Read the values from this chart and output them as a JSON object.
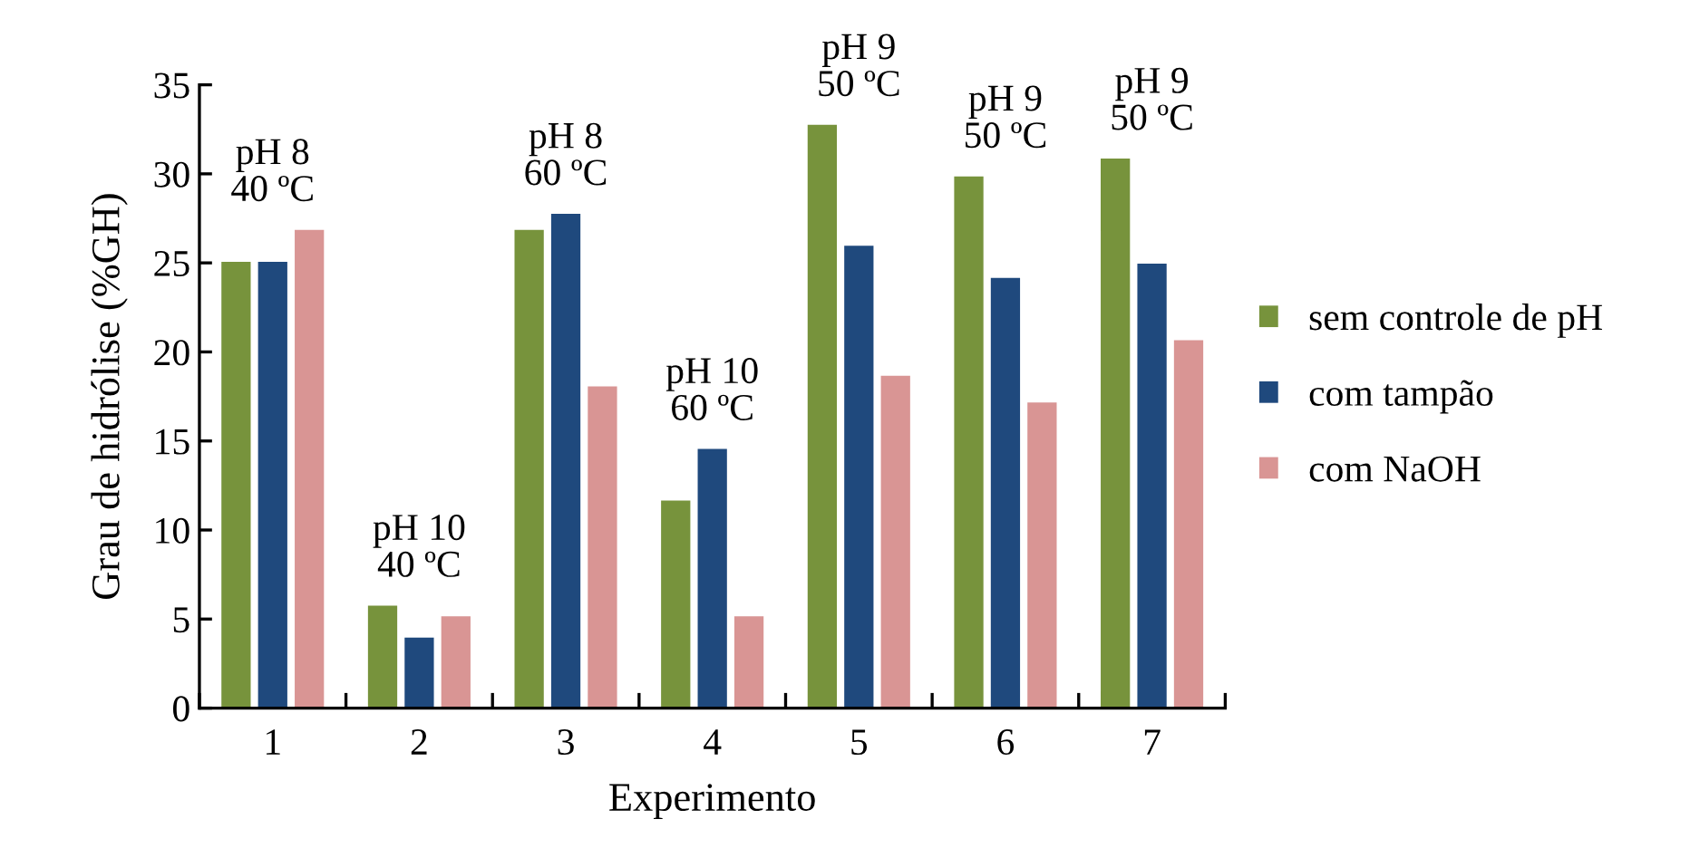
{
  "chart_data": {
    "type": "bar",
    "xlabel": "Experimento",
    "ylabel": "Grau de hidrólise (%GH)",
    "categories": [
      "1",
      "2",
      "3",
      "4",
      "5",
      "6",
      "7"
    ],
    "series": [
      {
        "name": "sem controle de pH",
        "color": "#77933c",
        "values": [
          25.1,
          5.8,
          26.9,
          11.7,
          32.8,
          29.9,
          30.9
        ]
      },
      {
        "name": "com tampão",
        "color": "#1f497d",
        "values": [
          25.1,
          4.0,
          27.8,
          14.6,
          26.0,
          24.2,
          25.0
        ]
      },
      {
        "name": "com NaOH",
        "color": "#d99594",
        "values": [
          26.9,
          5.2,
          18.1,
          5.2,
          18.7,
          17.2,
          20.7
        ]
      }
    ],
    "ylim": [
      0,
      35
    ],
    "yticks": [
      0,
      5,
      10,
      15,
      20,
      25,
      30,
      35
    ],
    "grid": false,
    "legend": "right",
    "annotations": [
      "pH 8\n40 ºC",
      "pH 10\n40 ºC",
      "pH 8\n60 ºC",
      "pH 10\n60 ºC",
      "pH 9\n50 ºC",
      "pH 9\n50 ºC",
      "pH 9\n50 ºC"
    ]
  }
}
